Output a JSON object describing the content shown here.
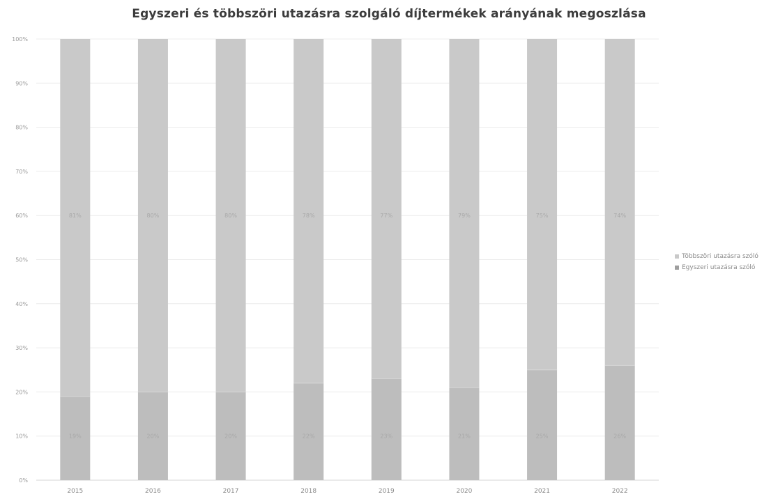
{
  "chart_data": {
    "type": "bar",
    "stacked": true,
    "percent_stacked": true,
    "title": "Egyszeri és többszöri utazásra szolgáló díjtermékek arányának megoszlása",
    "categories": [
      "2015",
      "2016",
      "2017",
      "2018",
      "2019",
      "2020",
      "2021",
      "2022"
    ],
    "series": [
      {
        "name": "Egyszeri utazásra szóló",
        "values": [
          19,
          20,
          20,
          22,
          23,
          21,
          25,
          26
        ],
        "labels": [
          "19%",
          "20%",
          "20%",
          "22%",
          "23%",
          "21%",
          "25%",
          "26%"
        ],
        "color": "#bdbdbd"
      },
      {
        "name": "Többszöri utazásra szóló",
        "values": [
          81,
          80,
          80,
          78,
          77,
          79,
          75,
          74
        ],
        "labels": [
          "81%",
          "80%",
          "80%",
          "78%",
          "77%",
          "79%",
          "75%",
          "74%"
        ],
        "color": "#c9c9c9"
      }
    ],
    "yticks": [
      "0%",
      "10%",
      "20%",
      "30%",
      "40%",
      "50%",
      "60%",
      "70%",
      "80%",
      "90%",
      "100%"
    ],
    "ylim": [
      0,
      100
    ],
    "grid": true,
    "legend_position": "right"
  }
}
